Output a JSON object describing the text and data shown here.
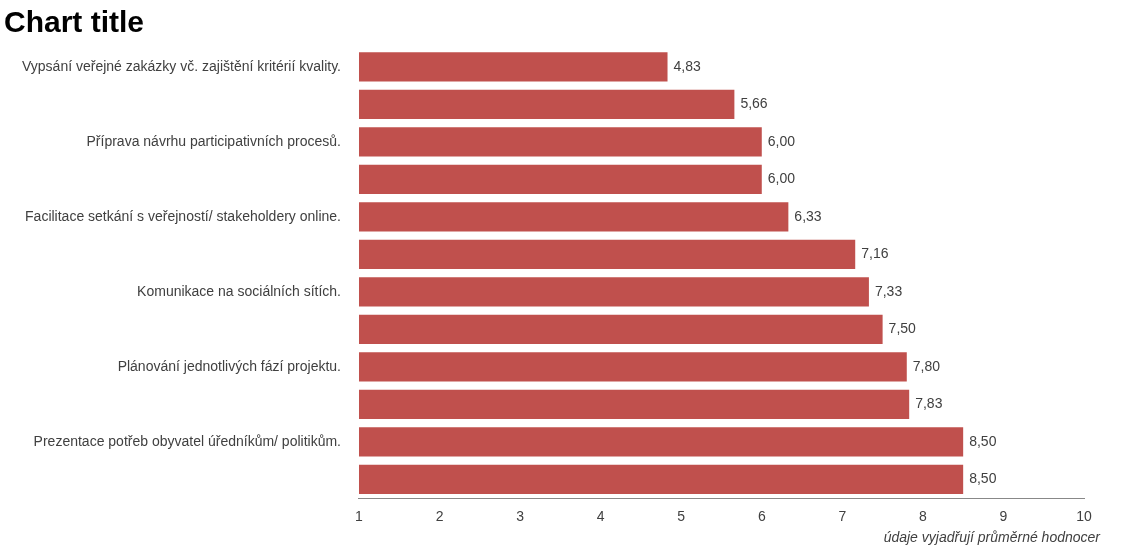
{
  "chart_data": {
    "type": "bar",
    "orientation": "horizontal",
    "title": "Chart title",
    "xlabel": "údaje vyjadřují průměrné hodnocer",
    "categories": [
      "Vypsání veřejné zakázky vč. zajištění kritérií kvality.",
      null,
      "Příprava návrhu participativních procesů.",
      null,
      "Facilitace setkání s veřejností/ stakeholdery online.",
      null,
      "Komunikace na sociálních sítích.",
      null,
      "Plánování jednotlivých fází projektu.",
      null,
      "Prezentace potřeb obyvatel úředníkům/ politikům.",
      null
    ],
    "values": [
      4.83,
      5.66,
      6.0,
      6.0,
      6.33,
      7.16,
      7.33,
      7.5,
      7.8,
      7.83,
      8.5,
      8.5
    ],
    "value_labels": [
      "4,83",
      "5,66",
      "6,00",
      "6,00",
      "6,33",
      "7,16",
      "7,33",
      "7,50",
      "7,80",
      "7,83",
      "8,50",
      "8,50"
    ],
    "color": "#c0504d",
    "xlim": [
      1,
      10
    ],
    "xticks": [
      1,
      2,
      3,
      4,
      5,
      6,
      7,
      8,
      9,
      10
    ],
    "grid": false,
    "legend": false
  }
}
